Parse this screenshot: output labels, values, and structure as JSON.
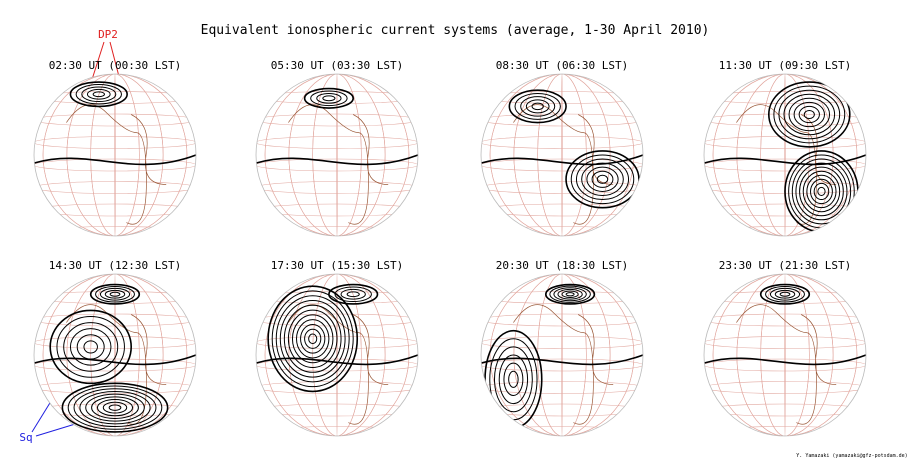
{
  "header": {
    "title": "Equivalent ionospheric current systems (average, 1-30 April 2010)"
  },
  "panels": [
    {
      "label": "02:30 UT (00:30 LST)"
    },
    {
      "label": "05:30 UT (03:30 LST)"
    },
    {
      "label": "08:30 UT (06:30 LST)"
    },
    {
      "label": "11:30 UT (09:30 LST)"
    },
    {
      "label": "14:30 UT (12:30 LST)"
    },
    {
      "label": "17:30 UT (15:30 LST)"
    },
    {
      "label": "20:30 UT (18:30 LST)"
    },
    {
      "label": "23:30 UT (21:30 LST)"
    }
  ],
  "annotations": {
    "dp2": "DP2",
    "sq": "Sq"
  },
  "credit": "Y. Yamazaki (yamazaki@gfz-potsdam.de)"
}
